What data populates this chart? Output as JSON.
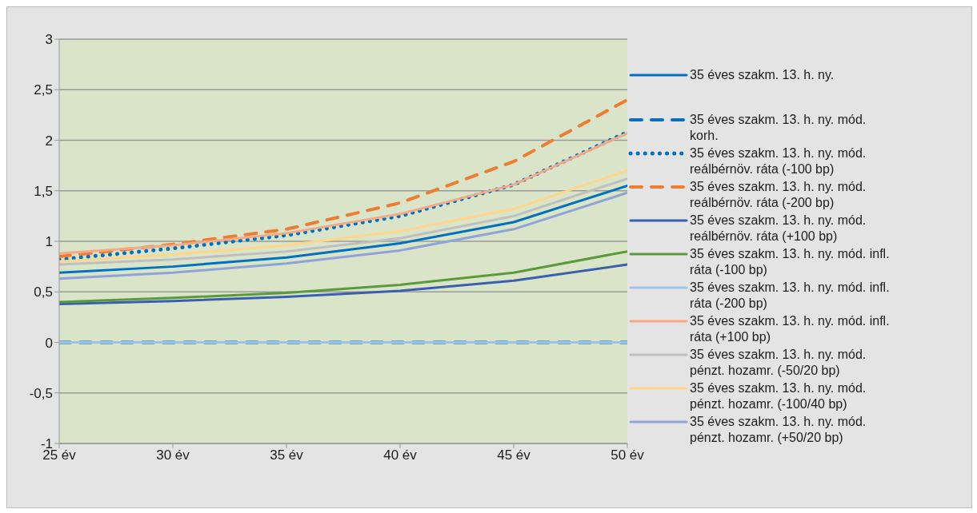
{
  "chart_data": {
    "type": "line",
    "categories": [
      "25 év",
      "30 év",
      "35 év",
      "40 év",
      "45 év",
      "50 év"
    ],
    "ylim": [
      -1,
      3
    ],
    "yticks": [
      -1,
      {
        "value": -0.5,
        "label": "-0,5"
      },
      0,
      {
        "value": 0.5,
        "label": "0,5"
      },
      1,
      {
        "value": 1.5,
        "label": "1,5"
      },
      2,
      {
        "value": 2.5,
        "label": "2,5"
      },
      3
    ],
    "grid": "y",
    "legend": "right",
    "marker": "none",
    "series": [
      {
        "name": "35 éves szakm. 13. h. ny.",
        "color": "#0070c0",
        "line_style": "solid",
        "values": [
          0.69,
          0.75,
          0.84,
          0.98,
          1.19,
          1.55
        ]
      },
      {
        "name": "35 éves szakm. 13. h. ny. mód. korh.",
        "color": "#0070c0",
        "line_style": "dashed",
        "values": [
          0,
          0,
          0,
          0,
          0,
          0
        ]
      },
      {
        "name": "35 éves szakm. 13. h. ny. mód. reálbérnöv. ráta (-100 bp)",
        "color": "#0070c0",
        "line_style": "dotted",
        "values": [
          0.82,
          0.93,
          1.06,
          1.25,
          1.56,
          2.08
        ]
      },
      {
        "name": "35 éves szakm. 13. h. ny. mód. reálbérnöv. ráta (-200 bp)",
        "color": "#ed7d31",
        "line_style": "dashed",
        "values": [
          0.85,
          0.97,
          1.12,
          1.38,
          1.79,
          2.4
        ]
      },
      {
        "name": "35 éves szakm. 13. h. ny. mód. reálbérnöv. ráta (+100 bp)",
        "color": "#3a5fad",
        "line_style": "solid",
        "values": [
          0.38,
          0.41,
          0.45,
          0.51,
          0.61,
          0.77
        ]
      },
      {
        "name": "35 éves szakm. 13. h. ny. mód. infl. ráta (-100 bp)",
        "color": "#5b9a3c",
        "line_style": "solid",
        "values": [
          0.4,
          0.44,
          0.49,
          0.57,
          0.69,
          0.9
        ]
      },
      {
        "name": "35 éves szakm. 13. h. ny. mód. infl. ráta (-200 bp)",
        "color": "#9dc3e6",
        "line_style": "solid",
        "values": [
          0,
          0,
          0,
          0,
          0,
          0
        ]
      },
      {
        "name": "35 éves szakm. 13. h. ny. mód. infl. ráta (+100 bp)",
        "color": "#f4a989",
        "line_style": "solid",
        "values": [
          0.88,
          0.96,
          1.08,
          1.27,
          1.56,
          2.07
        ]
      },
      {
        "name": "35 éves szakm. 13. h. ny. mód. pénzt. hozamr. (-50/20 bp)",
        "color": "#bfbfbf",
        "line_style": "solid",
        "values": [
          0.77,
          0.82,
          0.9,
          1.03,
          1.25,
          1.62
        ]
      },
      {
        "name": "35 éves szakm. 13. h. ny. mód. pénzt. hozamr. (-100/40 bp)",
        "color": "#ffd58a",
        "line_style": "solid",
        "values": [
          0.8,
          0.87,
          0.96,
          1.1,
          1.32,
          1.7
        ]
      },
      {
        "name": "35 éves szakm. 13. h. ny. mód. pénzt. hozamr. (+50/20 bp)",
        "color": "#8ea4d8",
        "line_style": "solid",
        "values": [
          0.63,
          0.69,
          0.78,
          0.91,
          1.12,
          1.48
        ]
      }
    ]
  }
}
